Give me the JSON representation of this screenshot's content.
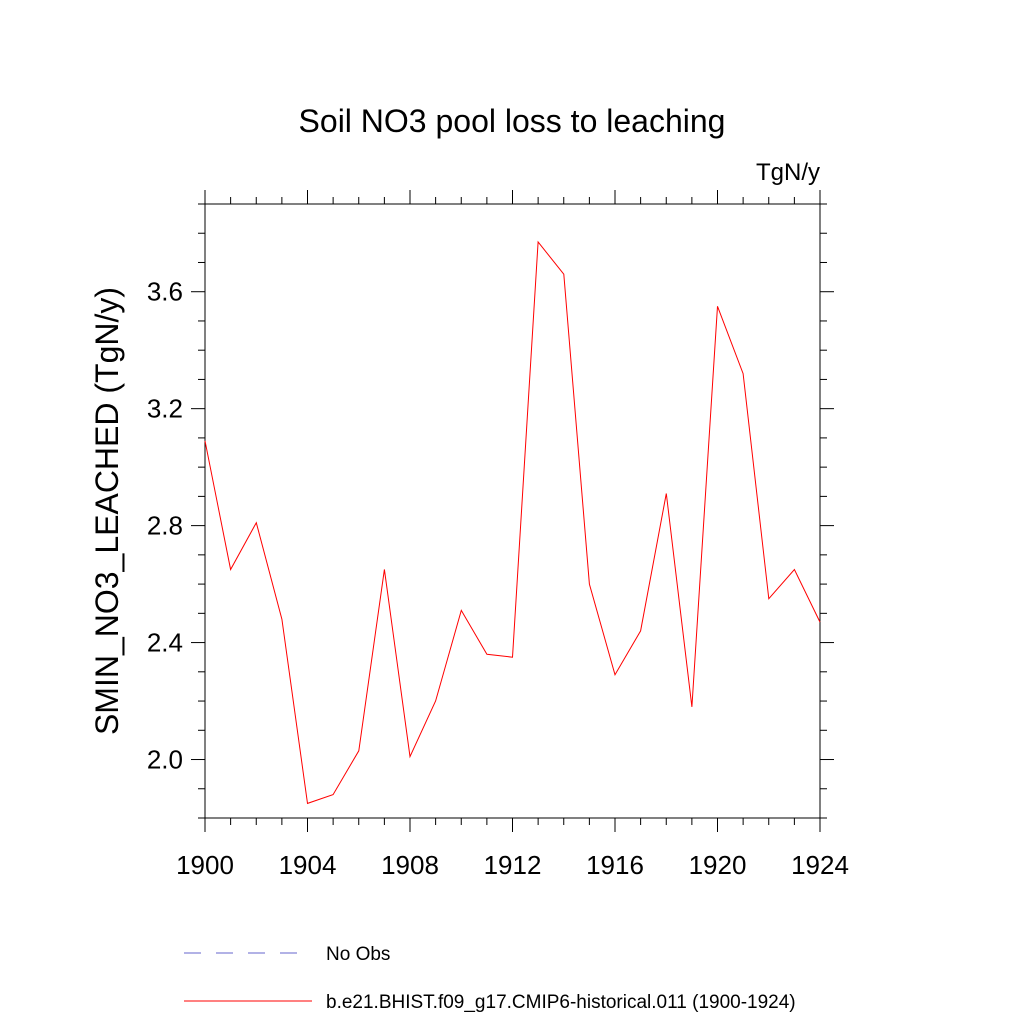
{
  "chart_data": {
    "type": "line",
    "title": "Soil NO3 pool loss to leaching",
    "units_label": "TgN/y",
    "ylabel": "SMIN_NO3_LEACHED  (TgN/y)",
    "xlabel": "",
    "xlim": [
      1900,
      1924
    ],
    "ylim": [
      1.8,
      3.9
    ],
    "x_ticks": [
      1900,
      1904,
      1908,
      1912,
      1916,
      1920,
      1924
    ],
    "y_ticks": [
      2.0,
      2.4,
      2.8,
      3.2,
      3.6
    ],
    "grid": false,
    "legend_position": "bottom",
    "x": [
      1900,
      1901,
      1902,
      1903,
      1904,
      1905,
      1906,
      1907,
      1908,
      1909,
      1910,
      1911,
      1912,
      1913,
      1914,
      1915,
      1916,
      1917,
      1918,
      1919,
      1920,
      1921,
      1922,
      1923,
      1924
    ],
    "series": [
      {
        "name": "b.e21.BHIST.f09_g17.CMIP6-historical.011 (1900-1924)",
        "color": "#ff0000",
        "dashed": false,
        "values": [
          3.09,
          2.65,
          2.81,
          2.48,
          1.85,
          1.88,
          2.03,
          2.65,
          2.01,
          2.2,
          2.51,
          2.36,
          2.35,
          3.77,
          3.66,
          2.6,
          2.29,
          2.44,
          2.91,
          2.18,
          3.55,
          3.32,
          2.55,
          2.65,
          2.47
        ]
      }
    ],
    "legend": [
      {
        "label": "No Obs",
        "color": "#6666cc",
        "dashed": true
      },
      {
        "label": "b.e21.BHIST.f09_g17.CMIP6-historical.011 (1900-1924)",
        "color": "#ff0000",
        "dashed": false
      }
    ]
  }
}
